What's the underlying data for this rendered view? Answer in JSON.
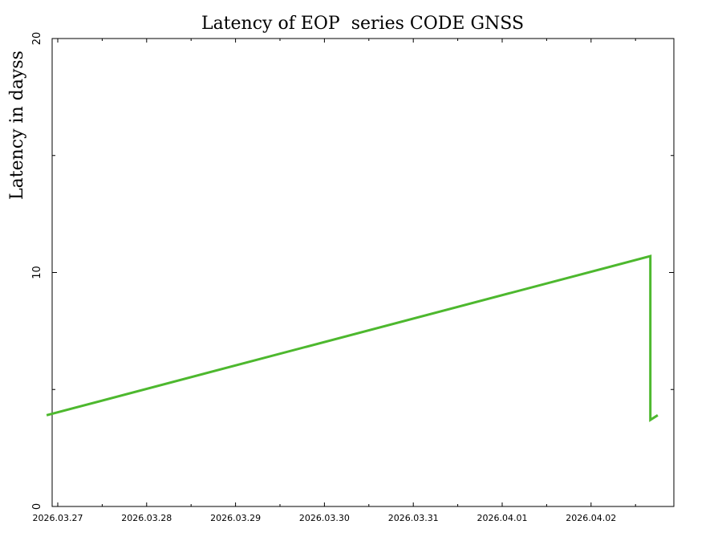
{
  "chart_data": {
    "type": "line",
    "title": "Latency of EOP  series CODE GNSS",
    "xlabel": "",
    "ylabel": "Latency in dayss",
    "ylim": [
      0,
      20
    ],
    "yticks": [
      "0",
      "10",
      "20"
    ],
    "xticks": [
      "2026.03.27",
      "2026.03.28",
      "2026.03.29",
      "2026.03.30",
      "2026.03.31",
      "2026.04.01",
      "2026.04.02"
    ],
    "xlim": [
      "2026.03.27",
      "2026.04.02"
    ],
    "grid": false,
    "line_color": "#4db82e",
    "series": [
      {
        "x": [
          "2026-03-26T21:00",
          "2026-04-02T16:00",
          "2026-04-02T16:01",
          "2026-04-02T18:00"
        ],
        "y": [
          3.9,
          10.7,
          3.7,
          3.9
        ]
      }
    ]
  }
}
